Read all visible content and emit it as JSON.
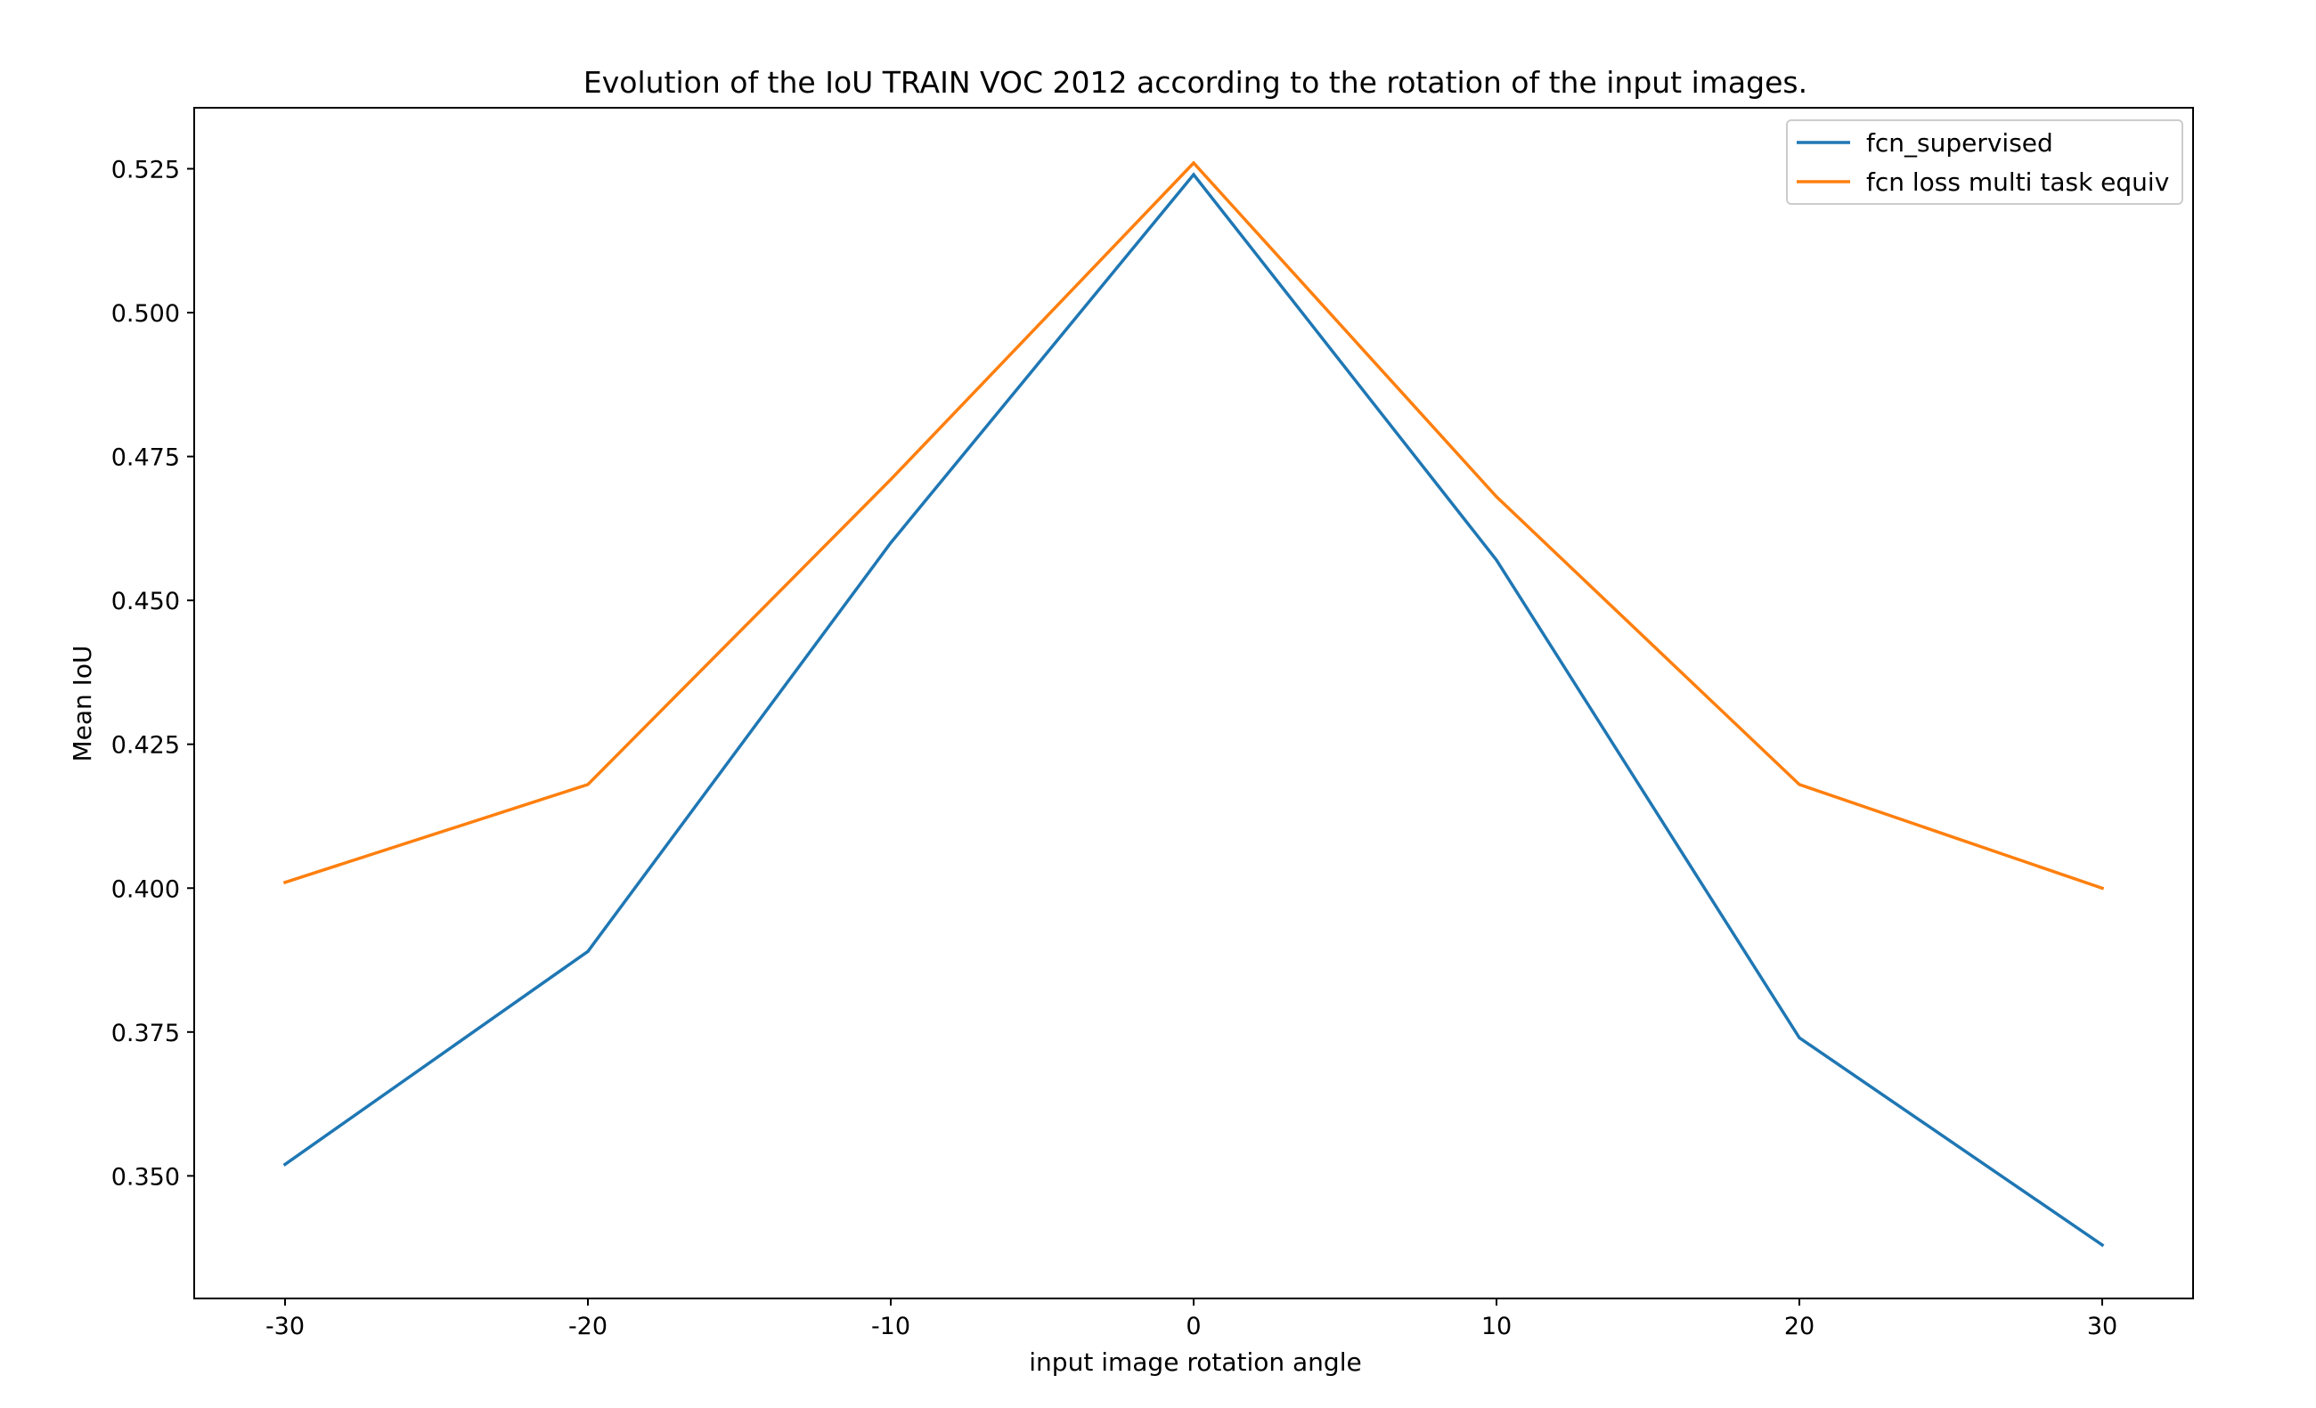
{
  "chart_data": {
    "type": "line",
    "title": "Evolution of the IoU TRAIN VOC 2012 according to the rotation of the input images.",
    "xlabel": "input image rotation angle",
    "ylabel": "Mean IoU",
    "x": [
      -30,
      -20,
      -10,
      0,
      10,
      20,
      30
    ],
    "xticks": [
      -30,
      -20,
      -10,
      0,
      10,
      20,
      30
    ],
    "xtick_labels": [
      "-30",
      "-20",
      "-10",
      "0",
      "10",
      "20",
      "30"
    ],
    "xlim": [
      -33,
      33
    ],
    "yticks": [
      0.35,
      0.375,
      0.4,
      0.425,
      0.45,
      0.475,
      0.5,
      0.525
    ],
    "ytick_labels": [
      "0.350",
      "0.375",
      "0.400",
      "0.425",
      "0.450",
      "0.475",
      "0.500",
      "0.525"
    ],
    "ylim": [
      0.3287,
      0.5356
    ],
    "grid": false,
    "legend_position": "top-right",
    "series": [
      {
        "name": "fcn_supervised",
        "color": "#1f77b4",
        "values": [
          0.352,
          0.389,
          0.46,
          0.524,
          0.457,
          0.374,
          0.338
        ]
      },
      {
        "name": "fcn loss multi task equiv",
        "color": "#ff7f0e",
        "values": [
          0.401,
          0.418,
          0.471,
          0.526,
          0.468,
          0.418,
          0.4
        ]
      }
    ]
  }
}
